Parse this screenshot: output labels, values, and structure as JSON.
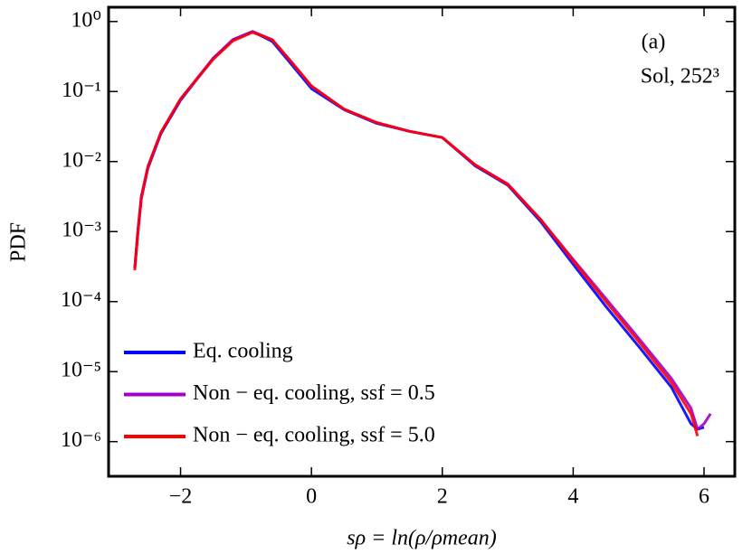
{
  "chart_data": {
    "type": "line",
    "xlabel": "sρ = ln(ρ/ρmean)",
    "ylabel": "PDF",
    "annotations": [
      "(a)",
      "Sol, 252³"
    ],
    "x": [
      -2.7,
      -2.65,
      -2.6,
      -2.5,
      -2.3,
      -2,
      -1.5,
      -1.2,
      -0.9,
      -0.6,
      -0.3,
      0,
      0.5,
      1,
      1.5,
      2,
      2.5,
      3,
      3.5,
      4,
      4.5,
      5,
      5.5,
      5.8,
      5.9,
      6,
      6.1
    ],
    "series": [
      {
        "name": "Eq. cooling",
        "color": "#0000ff",
        "values": [
          0.0003,
          0.001,
          0.003,
          0.008,
          0.025,
          0.075,
          0.3,
          0.55,
          0.72,
          0.52,
          0.24,
          0.11,
          0.055,
          0.035,
          0.027,
          0.022,
          0.0087,
          0.0046,
          0.0014,
          0.00034,
          8.5e-05,
          2.3e-05,
          6e-06,
          1.8e-06,
          1.5e-06,
          1.6e-06,
          null
        ]
      },
      {
        "name": "Non − eq. cooling,  ssf = 0.5",
        "color": "#a000c8",
        "values": [
          0.0003,
          0.0011,
          0.0032,
          0.0085,
          0.026,
          0.078,
          0.3,
          0.55,
          0.72,
          0.55,
          0.26,
          0.12,
          0.056,
          0.036,
          0.027,
          0.022,
          0.009,
          0.0048,
          0.0015,
          0.0004,
          0.00011,
          3e-05,
          8e-06,
          3e-06,
          1.5e-06,
          1.8e-06,
          2.5e-06
        ]
      },
      {
        "name": "Non − eq. cooling,  ssf = 5.0",
        "color": "#ff0000",
        "values": [
          0.00028,
          0.001,
          0.003,
          0.0082,
          0.026,
          0.078,
          0.29,
          0.53,
          0.7,
          0.55,
          0.26,
          0.12,
          0.056,
          0.036,
          0.027,
          0.022,
          0.009,
          0.0047,
          0.0015,
          0.00038,
          0.0001,
          2.7e-05,
          7e-06,
          2.5e-06,
          1.2e-06,
          null,
          null
        ]
      }
    ],
    "xlim": [
      -3.1,
      6.47
    ],
    "xticks": [
      {
        "value": -2,
        "label": "−2"
      },
      0,
      2,
      4,
      6
    ],
    "ylim": [
      3.2e-07,
      1.6
    ],
    "yticks": [
      {
        "value": 1,
        "label": "10⁰"
      },
      {
        "value": 0.1,
        "label": "10⁻¹"
      },
      {
        "value": 0.01,
        "label": "10⁻²"
      },
      {
        "value": 0.001,
        "label": "10⁻³"
      },
      {
        "value": 0.0001,
        "label": "10⁻⁴"
      },
      {
        "value": 1e-05,
        "label": "10⁻⁵"
      },
      {
        "value": 1e-06,
        "label": "10⁻⁶"
      }
    ],
    "yscale": "log",
    "legend": "lower left"
  }
}
